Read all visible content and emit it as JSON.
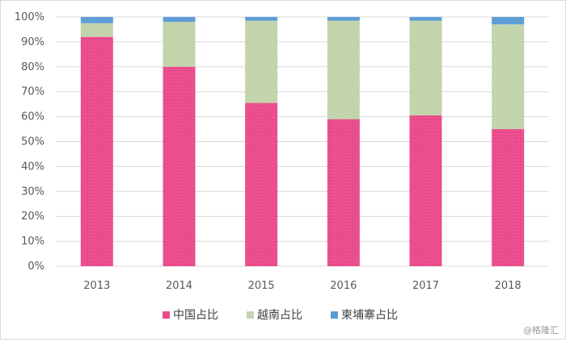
{
  "chart_data": {
    "type": "bar",
    "stacked": true,
    "categories": [
      "2013",
      "2014",
      "2015",
      "2016",
      "2017",
      "2018"
    ],
    "series": [
      {
        "name": "中国占比",
        "color": "#ea4b8b",
        "values": [
          92,
          80,
          65.5,
          59,
          60.5,
          55
        ]
      },
      {
        "name": "越南占比",
        "color": "#c5d6b0",
        "values": [
          5.5,
          18,
          33,
          39.5,
          38,
          42
        ]
      },
      {
        "name": "柬埔寨占比",
        "color": "#5b9bd5",
        "values": [
          2.5,
          2,
          1.5,
          1.5,
          1.5,
          3
        ]
      }
    ],
    "ylim": [
      0,
      100
    ],
    "yticks": [
      "0%",
      "10%",
      "20%",
      "30%",
      "40%",
      "50%",
      "60%",
      "70%",
      "80%",
      "90%",
      "100%"
    ],
    "grid": true,
    "legend_position": "bottom"
  },
  "watermark": "@格隆汇"
}
